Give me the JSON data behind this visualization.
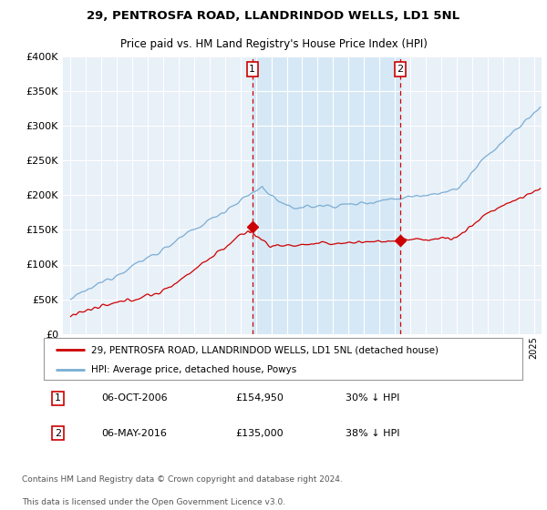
{
  "title1": "29, PENTROSFA ROAD, LLANDRINDOD WELLS, LD1 5NL",
  "title2": "Price paid vs. HM Land Registry's House Price Index (HPI)",
  "legend_line1": "29, PENTROSFA ROAD, LLANDRINDOD WELLS, LD1 5NL (detached house)",
  "legend_line2": "HPI: Average price, detached house, Powys",
  "sale1_date": "06-OCT-2006",
  "sale1_price": 154950,
  "sale1_label": "30% ↓ HPI",
  "sale2_date": "06-MAY-2016",
  "sale2_price": 135000,
  "sale2_label": "38% ↓ HPI",
  "sale1_year": 2006.77,
  "sale2_year": 2016.35,
  "footnote1": "Contains HM Land Registry data © Crown copyright and database right 2024.",
  "footnote2": "This data is licensed under the Open Government Licence v3.0.",
  "red_color": "#cc0000",
  "blue_color": "#7aadd4",
  "shade_color": "#d6e8f5",
  "background_color": "#e8f0f8",
  "plot_bg": "#ffffff",
  "grid_color": "#ffffff",
  "ylim": [
    0,
    400000
  ],
  "xlim_start": 1994.5,
  "xlim_end": 2025.5
}
